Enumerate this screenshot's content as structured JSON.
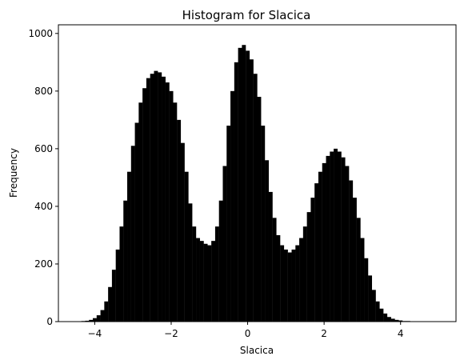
{
  "chart_data": {
    "type": "bar",
    "title": "Histogram for Slacica",
    "xlabel": "Slacica",
    "ylabel": "Frequency",
    "xlim": [
      -4.95,
      5.45
    ],
    "ylim": [
      0,
      1030
    ],
    "xticks": [
      -4,
      -2,
      0,
      2,
      4
    ],
    "xtick_labels": [
      "−4",
      "−2",
      "0",
      "2",
      "4"
    ],
    "yticks": [
      0,
      200,
      400,
      600,
      800,
      1000
    ],
    "ytick_labels": [
      "0",
      "200",
      "400",
      "600",
      "800",
      "1000"
    ],
    "bar_color": "#000000",
    "bin_width": 0.1,
    "x": [
      -4.5,
      -4.4,
      -4.3,
      -4.2,
      -4.1,
      -4.0,
      -3.9,
      -3.8,
      -3.7,
      -3.6,
      -3.5,
      -3.4,
      -3.3,
      -3.2,
      -3.1,
      -3.0,
      -2.9,
      -2.8,
      -2.7,
      -2.6,
      -2.5,
      -2.4,
      -2.3,
      -2.2,
      -2.1,
      -2.0,
      -1.9,
      -1.8,
      -1.7,
      -1.6,
      -1.5,
      -1.4,
      -1.3,
      -1.2,
      -1.1,
      -1.0,
      -0.9,
      -0.8,
      -0.7,
      -0.6,
      -0.5,
      -0.4,
      -0.3,
      -0.2,
      -0.1,
      0.0,
      0.1,
      0.2,
      0.3,
      0.4,
      0.5,
      0.6,
      0.7,
      0.8,
      0.9,
      1.0,
      1.1,
      1.2,
      1.3,
      1.4,
      1.5,
      1.6,
      1.7,
      1.8,
      1.9,
      2.0,
      2.1,
      2.2,
      2.3,
      2.4,
      2.5,
      2.6,
      2.7,
      2.8,
      2.9,
      3.0,
      3.1,
      3.2,
      3.3,
      3.4,
      3.5,
      3.6,
      3.7,
      3.8,
      3.9,
      4.0,
      4.1,
      4.2,
      4.3,
      4.4,
      4.5,
      4.6,
      4.7,
      4.8,
      4.9,
      5.0
    ],
    "values": [
      1,
      1,
      2,
      3,
      6,
      12,
      22,
      40,
      70,
      120,
      180,
      250,
      330,
      420,
      520,
      610,
      690,
      760,
      810,
      845,
      860,
      870,
      865,
      850,
      830,
      800,
      760,
      700,
      620,
      520,
      410,
      330,
      290,
      280,
      270,
      265,
      280,
      330,
      420,
      540,
      680,
      800,
      900,
      950,
      960,
      940,
      910,
      860,
      780,
      680,
      560,
      450,
      360,
      300,
      265,
      250,
      240,
      250,
      265,
      290,
      330,
      380,
      430,
      480,
      520,
      550,
      575,
      590,
      600,
      590,
      570,
      540,
      490,
      430,
      360,
      290,
      220,
      160,
      110,
      70,
      45,
      28,
      16,
      10,
      6,
      4,
      2,
      2,
      1,
      1,
      1,
      1,
      1,
      1,
      1,
      1
    ]
  }
}
